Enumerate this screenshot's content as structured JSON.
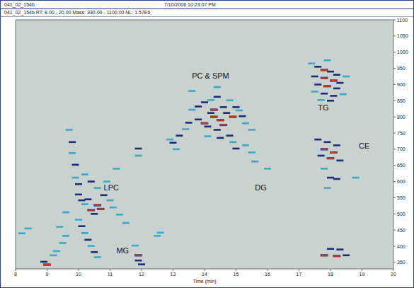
{
  "header": {
    "file": "041_02_154b",
    "date": "7/10/2006 10:23:07 PM"
  },
  "chart_data": {
    "type": "scatter",
    "title": "041_02_154b RT: 8.00 - 20.00 Mass: 330.00 - 1100.00 NL: 1.57E6",
    "x_label": "Time (min)",
    "xlim": [
      8,
      20
    ],
    "xticks": [
      8,
      9,
      10,
      11,
      12,
      13,
      14,
      15,
      16,
      17,
      18,
      19,
      20
    ],
    "ylim": [
      330,
      1100
    ],
    "yticks": [
      350,
      400,
      450,
      500,
      550,
      600,
      650,
      700,
      750,
      800,
      850,
      900,
      950,
      1000,
      1050,
      1100
    ],
    "annotations": [
      {
        "text": "LPC",
        "x": 10.8,
        "y": 581
      },
      {
        "text": "MG",
        "x": 11.2,
        "y": 387
      },
      {
        "text": "PC & SPM",
        "x": 13.6,
        "y": 927
      },
      {
        "text": "DG",
        "x": 15.6,
        "y": 581
      },
      {
        "text": "TG",
        "x": 17.6,
        "y": 828
      },
      {
        "text": "CE",
        "x": 18.9,
        "y": 711
      }
    ],
    "series": [
      {
        "marker": "streak",
        "x": [
          8.2,
          8.4,
          8.9,
          9.0,
          9.2,
          9.3,
          9.5,
          9.6,
          9.7,
          9.8,
          9.8,
          9.9,
          9.9,
          10.0,
          10.0,
          10.1,
          10.2,
          10.3,
          10.4,
          10.5,
          10.6,
          10.7,
          10.0,
          10.1,
          10.2,
          10.3,
          10.4,
          10.5,
          10.6,
          10.2,
          10.4,
          10.6,
          10.8,
          11.0,
          11.1,
          11.3,
          11.5,
          11.9,
          11.9,
          11.9,
          11.9,
          12.0,
          11.8,
          12.5,
          12.6,
          9.4,
          9.6,
          10.9,
          11.2,
          13.0,
          13.2,
          13.4,
          13.5,
          13.6,
          13.8,
          14.0,
          14.2,
          14.4,
          14.8,
          15.0,
          15.2,
          15.3,
          14.8,
          14.9,
          15.0,
          15.3,
          15.5,
          13.8,
          14.0,
          14.1,
          14.7,
          14.9,
          15.1,
          15.6,
          15.5,
          14.3,
          14.5,
          14.2,
          14.6,
          14.4,
          14.3,
          14.6,
          14.1,
          14.5,
          13.6,
          14.4,
          13.1,
          16.0,
          12.9,
          17.4,
          17.6,
          17.8,
          18.0,
          18.2,
          17.5,
          17.8,
          18.1,
          18.3,
          17.6,
          17.9,
          18.2,
          17.5,
          17.8,
          18.1,
          17.7,
          18.0,
          18.4,
          18.5,
          17.9,
          17.6,
          17.9,
          18.2,
          17.8,
          18.1,
          17.7,
          18.0,
          18.3,
          17.8,
          18.0,
          18.2,
          17.9,
          18.0,
          18.3,
          17.8,
          18.2,
          18.5,
          18.8
        ],
        "values": [
          440,
          455,
          352,
          343,
          372,
          385,
          410,
          432,
          760,
          722,
          688,
          652,
          612,
          592,
          560,
          542,
          530,
          545,
          512,
          500,
          527,
          515,
          482,
          462,
          441,
          420,
          401,
          382,
          366,
          622,
          600,
          580,
          558,
          542,
          520,
          498,
          472,
          702,
          680,
          372,
          356,
          344,
          402,
          432,
          442,
          460,
          505,
          600,
          640,
          720,
          742,
          762,
          782,
          822,
          832,
          845,
          852,
          862,
          851,
          830,
          802,
          780,
          742,
          722,
          702,
          712,
          760,
          792,
          780,
          770,
          812,
          800,
          820,
          662,
          690,
          800,
          790,
          812,
          775,
          760,
          822,
          830,
          740,
          735,
          880,
          892,
          700,
          640,
          730,
          965,
          955,
          945,
          940,
          930,
          925,
          920,
          912,
          905,
          900,
          895,
          888,
          878,
          872,
          865,
          852,
          850,
          870,
          925,
          975,
          730,
          722,
          712,
          700,
          690,
          680,
          672,
          665,
          640,
          612,
          608,
          580,
          392,
          390,
          372,
          370,
          372,
          612
        ],
        "intensity": [
          0.3,
          0.3,
          0.6,
          1.0,
          0.3,
          0.3,
          0.3,
          0.3,
          0.3,
          0.6,
          0.3,
          0.6,
          0.3,
          0.6,
          0.6,
          0.6,
          0.3,
          0.6,
          1.0,
          0.6,
          1.0,
          1.0,
          0.3,
          0.6,
          0.3,
          0.6,
          0.3,
          0.6,
          0.3,
          0.3,
          0.6,
          0.3,
          0.6,
          0.3,
          0.3,
          0.3,
          0.3,
          0.6,
          0.3,
          1.0,
          0.6,
          0.6,
          0.3,
          0.3,
          0.3,
          0.3,
          0.3,
          0.3,
          0.3,
          0.6,
          0.6,
          0.3,
          0.6,
          0.3,
          0.6,
          0.6,
          0.3,
          0.6,
          0.3,
          0.6,
          0.6,
          0.3,
          0.6,
          0.3,
          0.6,
          0.3,
          0.3,
          0.6,
          1.0,
          0.6,
          0.6,
          1.0,
          0.3,
          0.3,
          0.3,
          1.0,
          1.0,
          0.6,
          1.0,
          0.6,
          1.0,
          0.6,
          0.3,
          0.6,
          0.3,
          0.3,
          0.3,
          0.3,
          0.3,
          0.3,
          0.6,
          1.0,
          0.6,
          0.6,
          0.6,
          1.0,
          1.0,
          0.6,
          0.6,
          1.0,
          0.6,
          0.3,
          0.6,
          0.6,
          0.3,
          0.6,
          0.3,
          0.3,
          0.3,
          0.6,
          0.6,
          0.6,
          1.0,
          1.0,
          0.6,
          1.0,
          0.6,
          0.3,
          0.6,
          0.6,
          0.3,
          0.6,
          0.6,
          1.0,
          1.0,
          0.6,
          0.3
        ]
      }
    ]
  }
}
